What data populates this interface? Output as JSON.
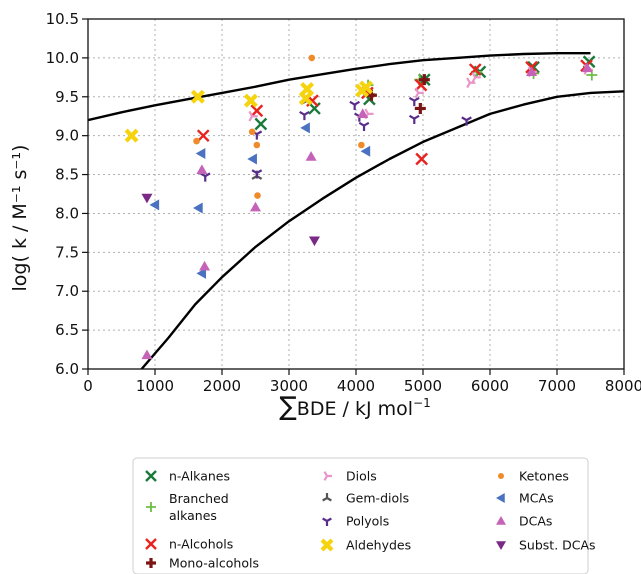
{
  "chart_data": {
    "type": "scatter",
    "xlabel_sum": "∑",
    "xlabel_text": "BDE / kJ mol",
    "xlabel_sup": "−1",
    "ylabel": "log( k / M⁻¹ s⁻¹)",
    "xlim": [
      0,
      8000
    ],
    "ylim": [
      6.0,
      10.5
    ],
    "x_ticks": [
      0,
      1000,
      2000,
      3000,
      4000,
      5000,
      6000,
      7000,
      8000
    ],
    "y_ticks": [
      6.0,
      6.5,
      7.0,
      7.5,
      8.0,
      8.5,
      9.0,
      9.5,
      10.0,
      10.5
    ],
    "x_tick_labels": [
      "0",
      "1000",
      "2000",
      "3000",
      "4000",
      "5000",
      "6000",
      "7000",
      "8000"
    ],
    "y_tick_labels": [
      "6.0",
      "6.5",
      "7.0",
      "7.5",
      "8.0",
      "8.5",
      "9.0",
      "9.5",
      "10.0",
      "10.5"
    ],
    "grid": true,
    "legend_position": "bottom",
    "series": [
      {
        "name": "n-Alkanes",
        "marker": "x",
        "color": "#1a7a3a",
        "points": [
          [
            2580,
            9.15
          ],
          [
            3380,
            9.35
          ],
          [
            4200,
            9.47
          ],
          [
            5020,
            9.72
          ],
          [
            5850,
            9.82
          ],
          [
            6650,
            9.88
          ],
          [
            7480,
            9.95
          ]
        ]
      },
      {
        "name": "Branched alkanes",
        "marker": "plus",
        "color": "#6cbd45",
        "points": [
          [
            4180,
            9.65
          ],
          [
            4950,
            9.72
          ],
          [
            5800,
            9.82
          ],
          [
            6650,
            9.8
          ],
          [
            7520,
            9.78
          ]
        ]
      },
      {
        "name": "n-Alcohols",
        "marker": "x",
        "color": "#e8231f",
        "points": [
          [
            1720,
            9.0
          ],
          [
            2520,
            9.32
          ],
          [
            3350,
            9.45
          ],
          [
            4170,
            9.55
          ],
          [
            4980,
            8.7
          ],
          [
            4970,
            9.65
          ],
          [
            5780,
            9.85
          ],
          [
            6620,
            9.88
          ],
          [
            7440,
            9.9
          ]
        ]
      },
      {
        "name": "Mono-alcohols",
        "marker": "cross",
        "color": "#7b1412",
        "points": [
          [
            4230,
            9.52
          ],
          [
            5020,
            9.72
          ],
          [
            4960,
            9.35
          ]
        ]
      },
      {
        "name": "Diols",
        "marker": "tri_right",
        "color": "#e895c8",
        "points": [
          [
            2450,
            9.25
          ],
          [
            4180,
            9.28
          ],
          [
            4930,
            9.55
          ],
          [
            5780,
            9.75
          ],
          [
            5700,
            9.68
          ],
          [
            6620,
            9.82
          ],
          [
            7450,
            9.85
          ]
        ]
      },
      {
        "name": "Gem-diols",
        "marker": "tri_up",
        "color": "#555555",
        "points": [
          [
            2520,
            8.48
          ],
          [
            3270,
            9.45
          ]
        ]
      },
      {
        "name": "Polyols",
        "marker": "tri_down",
        "color": "#5a2d8c",
        "points": [
          [
            1750,
            8.48
          ],
          [
            2520,
            8.52
          ],
          [
            2520,
            9.02
          ],
          [
            3230,
            9.27
          ],
          [
            3980,
            9.4
          ],
          [
            4050,
            9.25
          ],
          [
            4120,
            9.13
          ],
          [
            4870,
            9.45
          ],
          [
            4870,
            9.22
          ],
          [
            5650,
            9.2
          ]
        ]
      },
      {
        "name": "Aldehydes",
        "marker": "thick_x",
        "color": "#f5d40f",
        "points": [
          [
            650,
            9.0
          ],
          [
            1640,
            9.5
          ],
          [
            2430,
            9.45
          ],
          [
            3270,
            9.6
          ],
          [
            3250,
            9.48
          ],
          [
            4090,
            9.58
          ],
          [
            4150,
            9.62
          ]
        ]
      },
      {
        "name": "Ketones",
        "marker": "circle",
        "color": "#ef8b2b",
        "points": [
          [
            1620,
            8.93
          ],
          [
            2520,
            8.88
          ],
          [
            2530,
            8.23
          ],
          [
            3340,
            10.0
          ],
          [
            4080,
            8.88
          ],
          [
            2450,
            9.05
          ]
        ]
      },
      {
        "name": "MCAs",
        "marker": "tri_left",
        "color": "#4a72c0",
        "points": [
          [
            1000,
            8.11
          ],
          [
            1650,
            8.07
          ],
          [
            1700,
            7.23
          ],
          [
            1690,
            8.77
          ],
          [
            2460,
            8.7
          ],
          [
            3250,
            9.1
          ],
          [
            4150,
            8.8
          ]
        ]
      },
      {
        "name": "DCAs",
        "marker": "tri_up_filled",
        "color": "#c563b8",
        "points": [
          [
            880,
            6.18
          ],
          [
            1740,
            7.32
          ],
          [
            1700,
            8.56
          ],
          [
            2500,
            8.08
          ],
          [
            3330,
            8.73
          ],
          [
            4100,
            9.28
          ],
          [
            6620,
            9.82
          ],
          [
            7450,
            9.87
          ]
        ]
      },
      {
        "name": "Subst. DCAs",
        "marker": "tri_down_filled",
        "color": "#7a2a86",
        "points": [
          [
            880,
            8.2
          ],
          [
            3380,
            7.65
          ]
        ]
      }
    ],
    "curves": [
      {
        "name": "upper",
        "points": [
          [
            0,
            9.2
          ],
          [
            500,
            9.3
          ],
          [
            1000,
            9.39
          ],
          [
            1500,
            9.47
          ],
          [
            2000,
            9.55
          ],
          [
            2500,
            9.63
          ],
          [
            3000,
            9.72
          ],
          [
            3500,
            9.79
          ],
          [
            4000,
            9.86
          ],
          [
            4500,
            9.92
          ],
          [
            5000,
            9.97
          ],
          [
            5500,
            10.0
          ],
          [
            6000,
            10.03
          ],
          [
            6500,
            10.05
          ],
          [
            7000,
            10.06
          ],
          [
            7500,
            10.06
          ]
        ]
      },
      {
        "name": "lower",
        "points": [
          [
            800,
            6.0
          ],
          [
            1200,
            6.4
          ],
          [
            1600,
            6.83
          ],
          [
            2000,
            7.18
          ],
          [
            2500,
            7.57
          ],
          [
            3000,
            7.9
          ],
          [
            3500,
            8.19
          ],
          [
            4000,
            8.46
          ],
          [
            4500,
            8.7
          ],
          [
            5000,
            8.92
          ],
          [
            5500,
            9.1
          ],
          [
            6000,
            9.28
          ],
          [
            6500,
            9.4
          ],
          [
            7000,
            9.5
          ],
          [
            7500,
            9.55
          ],
          [
            8000,
            9.57
          ]
        ]
      }
    ]
  }
}
